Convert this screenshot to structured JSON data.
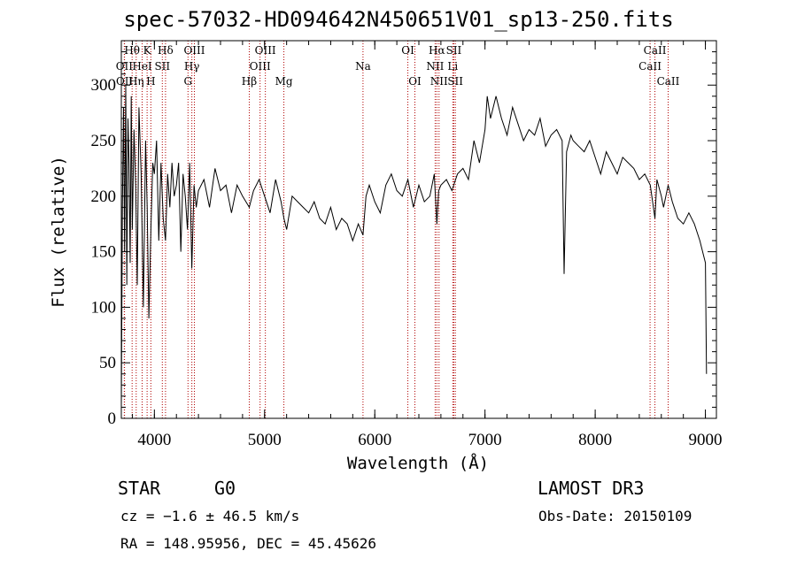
{
  "header": {
    "title": "spec-57032-HD094642N450651V01_sp13-250.fits"
  },
  "info": {
    "class": "STAR",
    "subclass": "G0",
    "survey": "LAMOST DR3",
    "redshift": "cz = −1.6 ± 46.5 km/s",
    "obs_date": "Obs-Date: 20150109",
    "coords": "RA = 148.95956, DEC =  45.45626"
  },
  "chart_data": {
    "type": "line",
    "title": "spec-57032-HD094642N450651V01_sp13-250.fits",
    "xlabel": "Wavelength (Å)",
    "ylabel": "Flux (relative)",
    "xlim": [
      3700,
      9100
    ],
    "ylim": [
      0,
      340
    ],
    "xticks": [
      4000,
      5000,
      6000,
      7000,
      8000,
      9000
    ],
    "yticks": [
      0,
      50,
      100,
      150,
      200,
      250,
      300
    ],
    "series": [
      {
        "name": "flux",
        "x": [
          3700,
          3710,
          3720,
          3730,
          3740,
          3750,
          3760,
          3770,
          3780,
          3790,
          3800,
          3815,
          3830,
          3845,
          3860,
          3880,
          3900,
          3920,
          3935,
          3950,
          3968,
          3985,
          4000,
          4020,
          4040,
          4060,
          4080,
          4101,
          4120,
          4140,
          4160,
          4180,
          4200,
          4220,
          4240,
          4260,
          4280,
          4300,
          4320,
          4340,
          4360,
          4380,
          4400,
          4450,
          4500,
          4550,
          4600,
          4650,
          4700,
          4750,
          4800,
          4861,
          4900,
          4950,
          5000,
          5050,
          5100,
          5150,
          5175,
          5200,
          5250,
          5300,
          5350,
          5400,
          5450,
          5500,
          5550,
          5600,
          5650,
          5700,
          5750,
          5800,
          5850,
          5893,
          5920,
          5950,
          6000,
          6050,
          6100,
          6150,
          6200,
          6250,
          6300,
          6350,
          6400,
          6450,
          6500,
          6540,
          6563,
          6580,
          6600,
          6650,
          6700,
          6750,
          6800,
          6850,
          6900,
          6950,
          7000,
          7020,
          7050,
          7100,
          7150,
          7200,
          7250,
          7300,
          7350,
          7400,
          7450,
          7500,
          7550,
          7600,
          7650,
          7700,
          7718,
          7740,
          7780,
          7800,
          7850,
          7900,
          7950,
          8000,
          8050,
          8100,
          8150,
          8200,
          8250,
          8300,
          8350,
          8400,
          8450,
          8500,
          8542,
          8560,
          8600,
          8620,
          8662,
          8700,
          8750,
          8800,
          8850,
          8900,
          8950,
          9000,
          9010
        ],
        "values": [
          10,
          190,
          280,
          150,
          300,
          120,
          270,
          230,
          140,
          290,
          170,
          260,
          210,
          120,
          280,
          220,
          100,
          250,
          190,
          90,
          170,
          230,
          220,
          250,
          160,
          230,
          180,
          160,
          220,
          190,
          230,
          200,
          210,
          230,
          150,
          220,
          200,
          170,
          230,
          135,
          210,
          190,
          205,
          215,
          190,
          225,
          205,
          210,
          185,
          210,
          200,
          190,
          205,
          215,
          200,
          185,
          215,
          195,
          180,
          170,
          200,
          195,
          190,
          185,
          195,
          180,
          175,
          190,
          170,
          180,
          175,
          160,
          175,
          165,
          200,
          210,
          195,
          185,
          210,
          220,
          205,
          200,
          215,
          190,
          210,
          195,
          200,
          220,
          175,
          205,
          210,
          215,
          205,
          220,
          225,
          215,
          250,
          230,
          260,
          290,
          270,
          290,
          270,
          255,
          280,
          265,
          250,
          260,
          255,
          270,
          245,
          255,
          260,
          250,
          130,
          240,
          255,
          250,
          245,
          240,
          250,
          235,
          220,
          240,
          230,
          220,
          235,
          230,
          225,
          215,
          220,
          210,
          180,
          215,
          200,
          190,
          210,
          195,
          180,
          175,
          185,
          175,
          160,
          140,
          40
        ]
      }
    ],
    "lines": [
      {
        "name": "Hθ",
        "x": 3798,
        "row": 0
      },
      {
        "name": "K",
        "x": 3934,
        "row": 0
      },
      {
        "name": "Hδ",
        "x": 4101,
        "row": 0
      },
      {
        "name": "OIII",
        "x": 4363,
        "row": 0
      },
      {
        "name": "OIII",
        "x": 5007,
        "row": 0
      },
      {
        "name": "OI",
        "x": 6300,
        "row": 0
      },
      {
        "name": "Hα",
        "x": 6563,
        "row": 0
      },
      {
        "name": "SII",
        "x": 6717,
        "row": 0
      },
      {
        "name": "CaII",
        "x": 8542,
        "row": 0
      },
      {
        "name": "OII",
        "x": 3727,
        "row": 1
      },
      {
        "name": "HeI",
        "x": 3889,
        "row": 1
      },
      {
        "name": "SII",
        "x": 4072,
        "row": 1
      },
      {
        "name": "Hγ",
        "x": 4340,
        "row": 1
      },
      {
        "name": "OIII",
        "x": 4959,
        "row": 1
      },
      {
        "name": "Na",
        "x": 5893,
        "row": 1
      },
      {
        "name": "NII",
        "x": 6548,
        "row": 1
      },
      {
        "name": "Li",
        "x": 6708,
        "row": 1
      },
      {
        "name": "CaII",
        "x": 8498,
        "row": 1
      },
      {
        "name": "OII",
        "x": 3729,
        "row": 2
      },
      {
        "name": "Hη",
        "x": 3835,
        "row": 2
      },
      {
        "name": "H",
        "x": 3968,
        "row": 2
      },
      {
        "name": "G",
        "x": 4305,
        "row": 2
      },
      {
        "name": "Hβ",
        "x": 4861,
        "row": 2
      },
      {
        "name": "Mg",
        "x": 5175,
        "row": 2
      },
      {
        "name": "OI",
        "x": 6364,
        "row": 2
      },
      {
        "name": "NII",
        "x": 6583,
        "row": 2
      },
      {
        "name": "SII",
        "x": 6731,
        "row": 2
      },
      {
        "name": "CaII",
        "x": 8662,
        "row": 2
      }
    ]
  }
}
